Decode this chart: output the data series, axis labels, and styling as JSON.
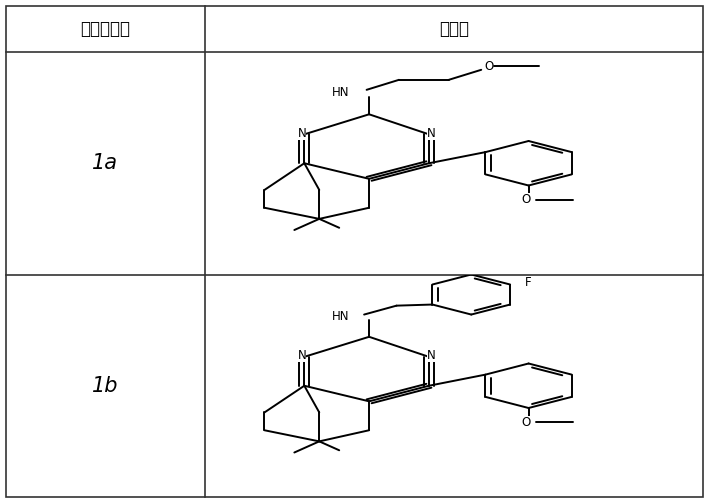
{
  "header_col1": "化合物编号",
  "header_col2": "结构式",
  "rows": [
    {
      "id": "1a"
    },
    {
      "id": "1b"
    }
  ],
  "bg_color": "#ffffff",
  "border_color": "#333333",
  "header_fontsize": 12,
  "id_fontsize": 15
}
